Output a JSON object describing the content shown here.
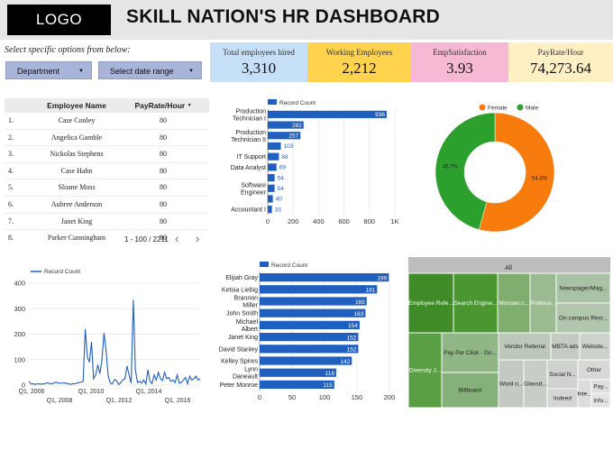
{
  "header": {
    "logo": "LOGO",
    "title": "SKILL NATION'S HR DASHBOARD"
  },
  "filters": {
    "prompt": "Select specific options from below:",
    "department_label": "Department",
    "date_label": "Select date range"
  },
  "kpis": [
    {
      "label": "Total employees hired",
      "value": "3,310",
      "color": "#c6e0f7"
    },
    {
      "label": "Working Employees",
      "value": "2,212",
      "color": "#ffd34d"
    },
    {
      "label": "EmpSatisfaction",
      "value": "3.93",
      "color": "#f6b8d2"
    },
    {
      "label": "PayRate/Hour",
      "value": "74,273.64",
      "color": "#fff0c4"
    }
  ],
  "table": {
    "col_name": "Employee Name",
    "col_pay": "PayRate/Hour",
    "sort_icon": "caret-down-icon",
    "rows": [
      {
        "idx": "1.",
        "name": "Case Conley",
        "pay": "80"
      },
      {
        "idx": "2.",
        "name": "Angelica Gamble",
        "pay": "80"
      },
      {
        "idx": "3.",
        "name": "Nickolas Stephens",
        "pay": "80"
      },
      {
        "idx": "4.",
        "name": "Case Hahn",
        "pay": "80"
      },
      {
        "idx": "5.",
        "name": "Sloane Moss",
        "pay": "80"
      },
      {
        "idx": "6.",
        "name": "Aubree Anderson",
        "pay": "80"
      },
      {
        "idx": "7.",
        "name": "Janet King",
        "pay": "80"
      },
      {
        "idx": "8.",
        "name": "Parker Cunningham",
        "pay": "80"
      }
    ],
    "pager": "1 - 100 / 2211"
  },
  "chart_data": [
    {
      "type": "bar",
      "orientation": "horizontal",
      "legend": "Record Count",
      "legend_position": "top",
      "categories": [
        "Production Technician I",
        "",
        "Production Technician II",
        "",
        "IT Support",
        "Data Analyst",
        "",
        "Software Engineer",
        "",
        "Accountant I"
      ],
      "category_lines": [
        [
          "Production",
          "Technician I"
        ],
        [],
        [
          "Production",
          "Technician II"
        ],
        [],
        [
          "IT Support"
        ],
        [
          "Data Analyst"
        ],
        [],
        [
          "Software",
          "Engineer"
        ],
        [],
        [
          "Accountant I"
        ]
      ],
      "values": [
        936,
        282,
        257,
        103,
        88,
        69,
        54,
        54,
        40,
        33
      ],
      "xlim": [
        0,
        1000
      ],
      "xticks": [
        "0",
        "200",
        "400",
        "600",
        "800",
        "1K"
      ],
      "color": "#1f5fbf"
    },
    {
      "type": "pie",
      "donut": true,
      "legend_position": "top",
      "labels": [
        "Female",
        "Male"
      ],
      "values": [
        54.3,
        45.7
      ],
      "value_labels": [
        "54.3%",
        "45.7%"
      ],
      "colors": [
        "#f77c0d",
        "#2ca02c"
      ]
    },
    {
      "type": "line",
      "legend": "Record Count",
      "legend_position": "top",
      "ylim": [
        0,
        400
      ],
      "yticks": [
        "0",
        "100",
        "200",
        "300",
        "400"
      ],
      "xticks_top": [
        "Q1, 2006",
        "Q1, 2010",
        "Q1, 2014"
      ],
      "xticks_bottom": [
        "Q1, 2008",
        "Q1, 2012",
        "Q1, 2016"
      ],
      "values": [
        15,
        5,
        5,
        3,
        5,
        5,
        4,
        5,
        6,
        10,
        5,
        6,
        8,
        12,
        8,
        8,
        7,
        10,
        6,
        6,
        3,
        6,
        5,
        8,
        10,
        12,
        14,
        220,
        110,
        90,
        170,
        25,
        40,
        80,
        45,
        100,
        205,
        135,
        35,
        8,
        5,
        22,
        18,
        2,
        10,
        20,
        25,
        75,
        40,
        8,
        335,
        60,
        10,
        15,
        8,
        20,
        5,
        60,
        15,
        6,
        40,
        20,
        50,
        25,
        18,
        50,
        25,
        30,
        15,
        20,
        10,
        40,
        8,
        10,
        20,
        30,
        5,
        35,
        20,
        25,
        35,
        20,
        25
      ],
      "color": "#1f5fbf"
    },
    {
      "type": "bar",
      "orientation": "horizontal",
      "legend": "Record Count",
      "legend_position": "top",
      "categories": [
        "Elijiah Gray",
        "Ketsia Liebig",
        "Brannon Miller",
        "John Smith",
        "Michael Albert",
        "Janet King",
        "David Stanley",
        "Kelley Spires",
        "Lynn Daneault",
        "Peter Monroe"
      ],
      "category_lines": [
        [
          "Elijiah Gray"
        ],
        [
          "Ketsia Liebig"
        ],
        [
          "Brannon",
          "Miller"
        ],
        [
          "John Smith"
        ],
        [
          "Michael",
          "Albert"
        ],
        [
          "Janet King"
        ],
        [
          "David Stanley"
        ],
        [
          "Kelley Spires"
        ],
        [
          "Lynn",
          "Daneault"
        ],
        [
          "Peter Monroe"
        ]
      ],
      "values": [
        199,
        181,
        165,
        163,
        154,
        152,
        152,
        142,
        118,
        115
      ],
      "xlim": [
        0,
        200
      ],
      "xticks": [
        "0",
        "50",
        "100",
        "150",
        "200"
      ],
      "color": "#1f5fbf"
    },
    {
      "type": "treemap",
      "title": "All",
      "labels": [
        "Employee Refe...",
        "Search Engine...",
        "Monster.c...",
        "Professi...",
        "Newspager/Mag...",
        "On-campus Recr...",
        "Diversity J...",
        "Pay Per Click - Go...",
        "Billboard",
        "Vendor Referral",
        "MBTA ads",
        "Website...",
        "Word o...",
        "Glassd...",
        "Social N...",
        "Indeed",
        "Other",
        "Inte...",
        "Pay...",
        "Info..."
      ]
    }
  ]
}
